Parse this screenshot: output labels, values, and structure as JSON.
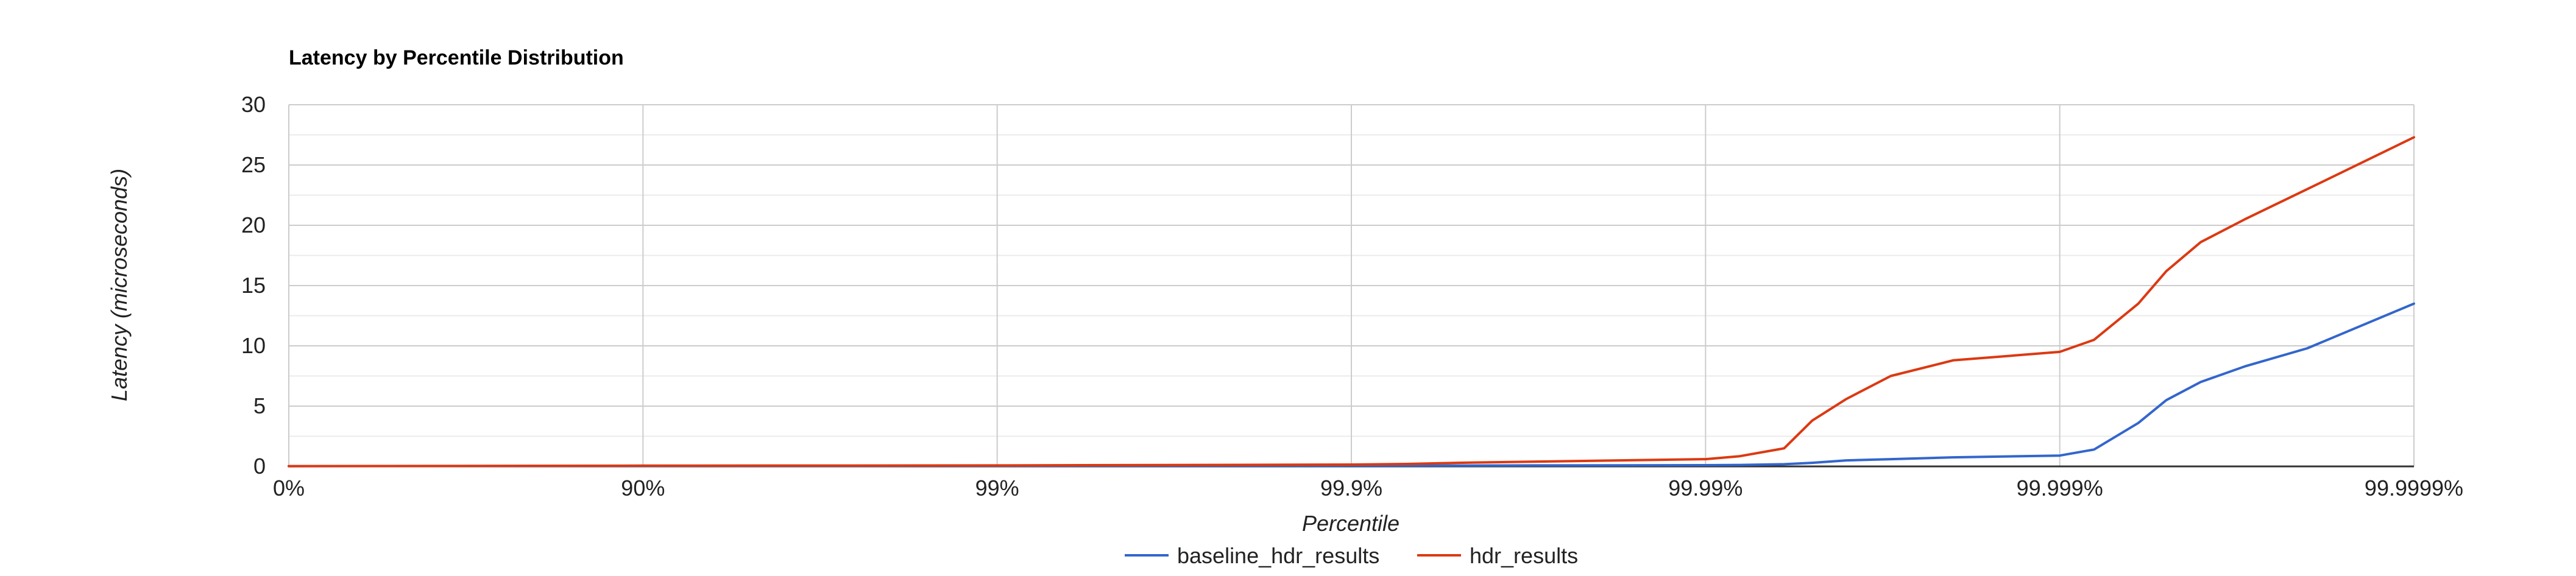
{
  "chart_data": {
    "type": "line",
    "title": "Latency by Percentile Distribution",
    "xlabel": "Percentile",
    "ylabel": "Latency (microseconds)",
    "x_scale": "log-nines",
    "x_ticks": [
      "0%",
      "90%",
      "99%",
      "99.9%",
      "99.99%",
      "99.999%",
      "99.9999%"
    ],
    "y_ticks": [
      "0",
      "5",
      "10",
      "15",
      "20",
      "25",
      "30"
    ],
    "ylim": [
      0,
      30
    ],
    "grid": true,
    "legend_position": "bottom",
    "x_percentile": [
      0,
      90,
      99,
      99.9,
      99.93,
      99.95,
      99.97,
      99.99,
      99.992,
      99.994,
      99.995,
      99.996,
      99.997,
      99.998,
      99.999,
      99.9992,
      99.9994,
      99.9995,
      99.9996,
      99.9997,
      99.9998,
      99.9999
    ],
    "series": [
      {
        "name": "baseline_hdr_results",
        "color": "#3366cc",
        "values": [
          0.02,
          0.04,
          0.05,
          0.06,
          0.06,
          0.07,
          0.08,
          0.1,
          0.12,
          0.18,
          0.3,
          0.5,
          0.6,
          0.75,
          0.9,
          1.4,
          3.6,
          5.5,
          7.0,
          8.3,
          9.8,
          13.5
        ]
      },
      {
        "name": "hdr_results",
        "color": "#dc3912",
        "values": [
          0.02,
          0.06,
          0.08,
          0.15,
          0.2,
          0.3,
          0.4,
          0.6,
          0.85,
          1.5,
          3.8,
          5.6,
          7.5,
          8.8,
          9.5,
          10.5,
          13.5,
          16.2,
          18.6,
          20.5,
          23.0,
          27.3
        ]
      }
    ]
  }
}
